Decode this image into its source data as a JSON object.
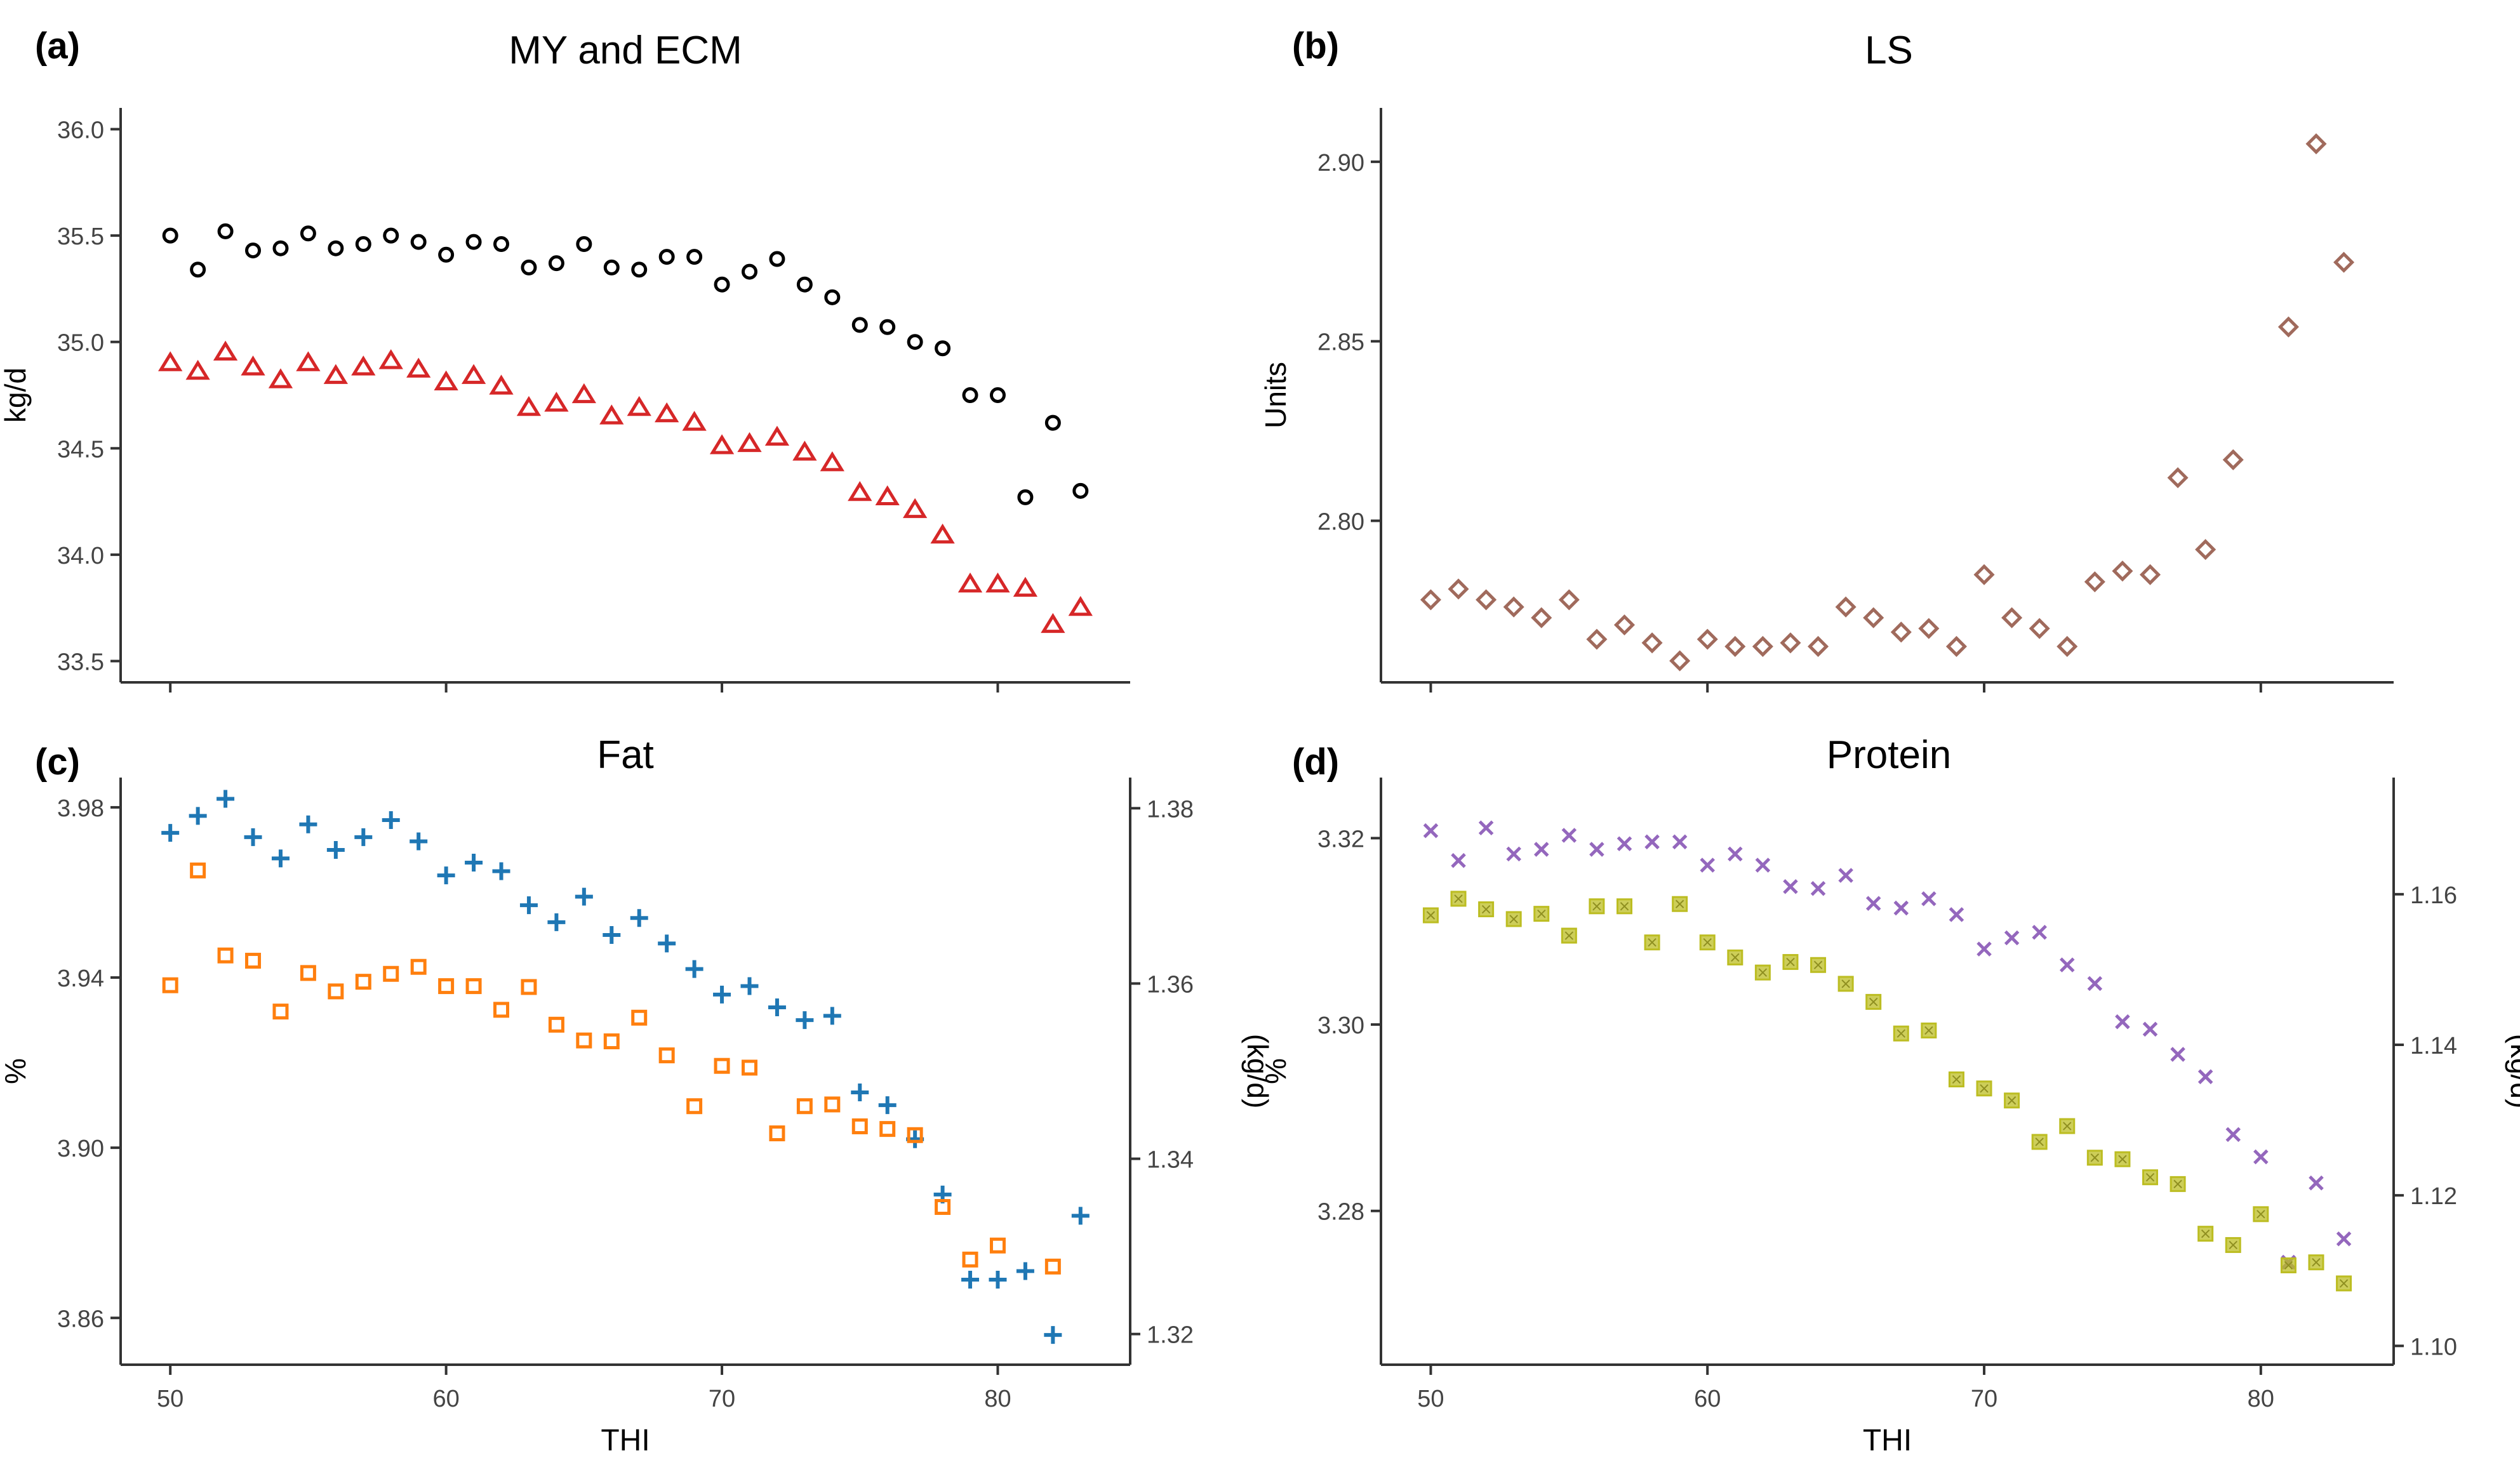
{
  "figure": {
    "thi_label": "THI",
    "colors": {
      "black": "#000000",
      "red": "#d62728",
      "brown": "#a06a5c",
      "blue": "#1f77b4",
      "orange": "#ff7f0e",
      "purple": "#9467bd",
      "olive": "#bcbd22"
    }
  },
  "chart_data": [
    {
      "id": "a",
      "panel_label": "(a)",
      "type": "scatter",
      "title": "MY and ECM",
      "ylabel": "kg/d",
      "ylim": [
        33.4,
        36.1
      ],
      "yticks": [
        33.5,
        34.0,
        34.5,
        35.0,
        35.5,
        36.0
      ],
      "ytick_labels": [
        "33.5",
        "34.0",
        "34.5",
        "35.0",
        "35.5",
        "36.0"
      ],
      "xlim": [
        48.2,
        84.8
      ],
      "xticks": [
        50,
        60,
        70,
        80
      ],
      "xtick_labels": [],
      "xlabel": "",
      "x": [
        50,
        51,
        52,
        53,
        54,
        55,
        56,
        57,
        58,
        59,
        60,
        61,
        62,
        63,
        64,
        65,
        66,
        67,
        68,
        69,
        70,
        71,
        72,
        73,
        74,
        75,
        76,
        77,
        78,
        79,
        80,
        81,
        82,
        83
      ],
      "series": [
        {
          "name": "MY",
          "marker": "circle",
          "color": "#000000",
          "values": [
            35.5,
            35.34,
            35.52,
            35.43,
            35.44,
            35.51,
            35.44,
            35.46,
            35.5,
            35.47,
            35.41,
            35.47,
            35.46,
            35.35,
            35.37,
            35.46,
            35.35,
            35.34,
            35.4,
            35.4,
            35.27,
            35.33,
            35.39,
            35.27,
            35.21,
            35.08,
            35.07,
            35.0,
            34.97,
            34.75,
            34.75,
            34.27,
            34.62,
            34.3
          ]
        },
        {
          "name": "ECM",
          "marker": "triangle",
          "color": "#d62728",
          "values": [
            34.9,
            34.86,
            34.95,
            34.88,
            34.82,
            34.9,
            34.84,
            34.88,
            34.91,
            34.87,
            34.81,
            34.84,
            34.79,
            34.69,
            34.71,
            34.75,
            34.65,
            34.69,
            34.66,
            34.62,
            34.51,
            34.52,
            34.55,
            34.48,
            34.43,
            34.29,
            34.27,
            34.21,
            34.09,
            33.86,
            33.86,
            33.84,
            33.67,
            33.75
          ]
        }
      ]
    },
    {
      "id": "b",
      "panel_label": "(b)",
      "type": "scatter",
      "title": "LS",
      "ylabel": "Units",
      "ylim": [
        2.755,
        2.915
      ],
      "yticks": [
        2.8,
        2.85,
        2.9
      ],
      "ytick_labels": [
        "2.80",
        "2.85",
        "2.90"
      ],
      "xlim": [
        48.2,
        84.8
      ],
      "xticks": [
        50,
        60,
        70,
        80
      ],
      "xtick_labels": [],
      "xlabel": "",
      "x": [
        50,
        51,
        52,
        53,
        54,
        55,
        56,
        57,
        58,
        59,
        60,
        61,
        62,
        63,
        64,
        65,
        66,
        67,
        68,
        69,
        70,
        71,
        72,
        73,
        74,
        75,
        76,
        77,
        78,
        79,
        81,
        82,
        83
      ],
      "series": [
        {
          "name": "LS",
          "marker": "diamond",
          "color": "#a06a5c",
          "values": [
            2.778,
            2.781,
            2.778,
            2.776,
            2.773,
            2.778,
            2.767,
            2.771,
            2.766,
            2.761,
            2.767,
            2.765,
            2.765,
            2.766,
            2.765,
            2.776,
            2.773,
            2.769,
            2.77,
            2.765,
            2.785,
            2.773,
            2.77,
            2.765,
            2.783,
            2.786,
            2.785,
            2.812,
            2.792,
            2.817,
            2.854,
            2.905,
            2.872
          ]
        }
      ]
    },
    {
      "id": "c",
      "panel_label": "(c)",
      "type": "scatter",
      "title": "Fat",
      "ylabel": "%",
      "ylabel_right": "(kg/d)",
      "ylim": [
        3.849,
        3.987
      ],
      "yticks": [
        3.86,
        3.9,
        3.94,
        3.98
      ],
      "ytick_labels": [
        "3.86",
        "3.90",
        "3.94",
        "3.98"
      ],
      "ylim_right": [
        1.3165,
        1.3835
      ],
      "yticks_right": [
        1.32,
        1.34,
        1.36,
        1.38
      ],
      "ytick_labels_right": [
        "1.32",
        "1.34",
        "1.36",
        "1.38"
      ],
      "xlim": [
        48.2,
        84.8
      ],
      "xticks": [
        50,
        60,
        70,
        80
      ],
      "xtick_labels": [
        "50",
        "60",
        "70",
        "80"
      ],
      "xlabel": "THI",
      "series": [
        {
          "name": "Fat %",
          "marker": "plus",
          "color": "#1f77b4",
          "axis": "left",
          "x": [
            50,
            51,
            52,
            53,
            54,
            55,
            56,
            57,
            58,
            59,
            60,
            61,
            62,
            63,
            64,
            65,
            66,
            67,
            68,
            69,
            70,
            71,
            72,
            73,
            74,
            75,
            76,
            77,
            78,
            79,
            80,
            81,
            82,
            83
          ],
          "values": [
            3.974,
            3.978,
            3.982,
            3.973,
            3.968,
            3.976,
            3.97,
            3.973,
            3.977,
            3.972,
            3.964,
            3.967,
            3.965,
            3.957,
            3.953,
            3.959,
            3.95,
            3.954,
            3.948,
            3.942,
            3.936,
            3.938,
            3.933,
            3.93,
            3.931,
            3.913,
            3.91,
            3.902,
            3.889,
            3.869,
            3.869,
            3.871,
            3.856,
            3.884
          ]
        },
        {
          "name": "Fat kg/d",
          "marker": "square",
          "color": "#ff7f0e",
          "axis": "right",
          "x": [
            50,
            51,
            52,
            53,
            54,
            55,
            56,
            57,
            58,
            59,
            60,
            61,
            62,
            63,
            64,
            65,
            66,
            67,
            68,
            69,
            70,
            71,
            72,
            73,
            74,
            75,
            76,
            77,
            78,
            79,
            80,
            82
          ],
          "values": [
            1.3598,
            1.3729,
            1.3632,
            1.3626,
            1.3568,
            1.3612,
            1.3591,
            1.3602,
            1.3611,
            1.3619,
            1.3597,
            1.3597,
            1.357,
            1.3596,
            1.3553,
            1.3535,
            1.3534,
            1.3561,
            1.3518,
            1.346,
            1.3506,
            1.3504,
            1.3429,
            1.346,
            1.3462,
            1.3437,
            1.3434,
            1.3427,
            1.3345,
            1.3285,
            1.3301,
            1.3277
          ]
        }
      ]
    },
    {
      "id": "d",
      "panel_label": "(d)",
      "type": "scatter",
      "title": "Protein",
      "ylabel": "%",
      "ylabel_right": "(kg/d)",
      "ylim": [
        3.2635,
        3.3265
      ],
      "yticks": [
        3.28,
        3.3,
        3.32
      ],
      "ytick_labels": [
        "3.28",
        "3.30",
        "3.32"
      ],
      "ylim_right": [
        1.0975,
        1.1755
      ],
      "yticks_right": [
        1.1,
        1.12,
        1.14,
        1.16
      ],
      "ytick_labels_right": [
        "1.10",
        "1.12",
        "1.14",
        "1.16"
      ],
      "xlim": [
        48.2,
        84.8
      ],
      "xticks": [
        50,
        60,
        70,
        80
      ],
      "xtick_labels": [
        "50",
        "60",
        "70",
        "80"
      ],
      "xlabel": "THI",
      "series": [
        {
          "name": "Protein %",
          "marker": "cross",
          "color": "#9467bd",
          "axis": "left",
          "x": [
            50,
            51,
            52,
            53,
            54,
            55,
            56,
            57,
            58,
            59,
            60,
            61,
            62,
            63,
            64,
            65,
            66,
            67,
            68,
            69,
            70,
            71,
            72,
            73,
            74,
            75,
            76,
            77,
            78,
            79,
            80,
            81,
            82,
            83
          ],
          "values": [
            3.3208,
            3.3176,
            3.3211,
            3.3183,
            3.3188,
            3.3203,
            3.3188,
            3.3194,
            3.3196,
            3.3196,
            3.3171,
            3.3183,
            3.3171,
            3.3148,
            3.3146,
            3.316,
            3.313,
            3.3125,
            3.3135,
            3.3118,
            3.3081,
            3.3093,
            3.3099,
            3.3064,
            3.3044,
            3.3003,
            3.2995,
            3.2968,
            3.2944,
            3.2882,
            3.2858,
            3.2745,
            3.283,
            3.277
          ]
        },
        {
          "name": "Protein kg/d",
          "marker": "filled-square",
          "color": "#bcbd22",
          "axis": "right",
          "x": [
            50,
            51,
            52,
            53,
            54,
            55,
            56,
            57,
            58,
            59,
            60,
            61,
            62,
            63,
            64,
            65,
            66,
            67,
            68,
            69,
            70,
            71,
            72,
            73,
            74,
            75,
            76,
            77,
            78,
            79,
            80,
            81,
            82,
            83
          ],
          "values": [
            1.1572,
            1.1594,
            1.158,
            1.1567,
            1.1574,
            1.1545,
            1.1584,
            1.1584,
            1.1536,
            1.1587,
            1.1536,
            1.1516,
            1.1496,
            1.151,
            1.1506,
            1.1481,
            1.1457,
            1.1415,
            1.1419,
            1.1354,
            1.1342,
            1.1326,
            1.1271,
            1.1292,
            1.125,
            1.1248,
            1.1224,
            1.1215,
            1.1149,
            1.1134,
            1.1175,
            1.1107,
            1.1111,
            1.1083
          ]
        }
      ]
    }
  ]
}
